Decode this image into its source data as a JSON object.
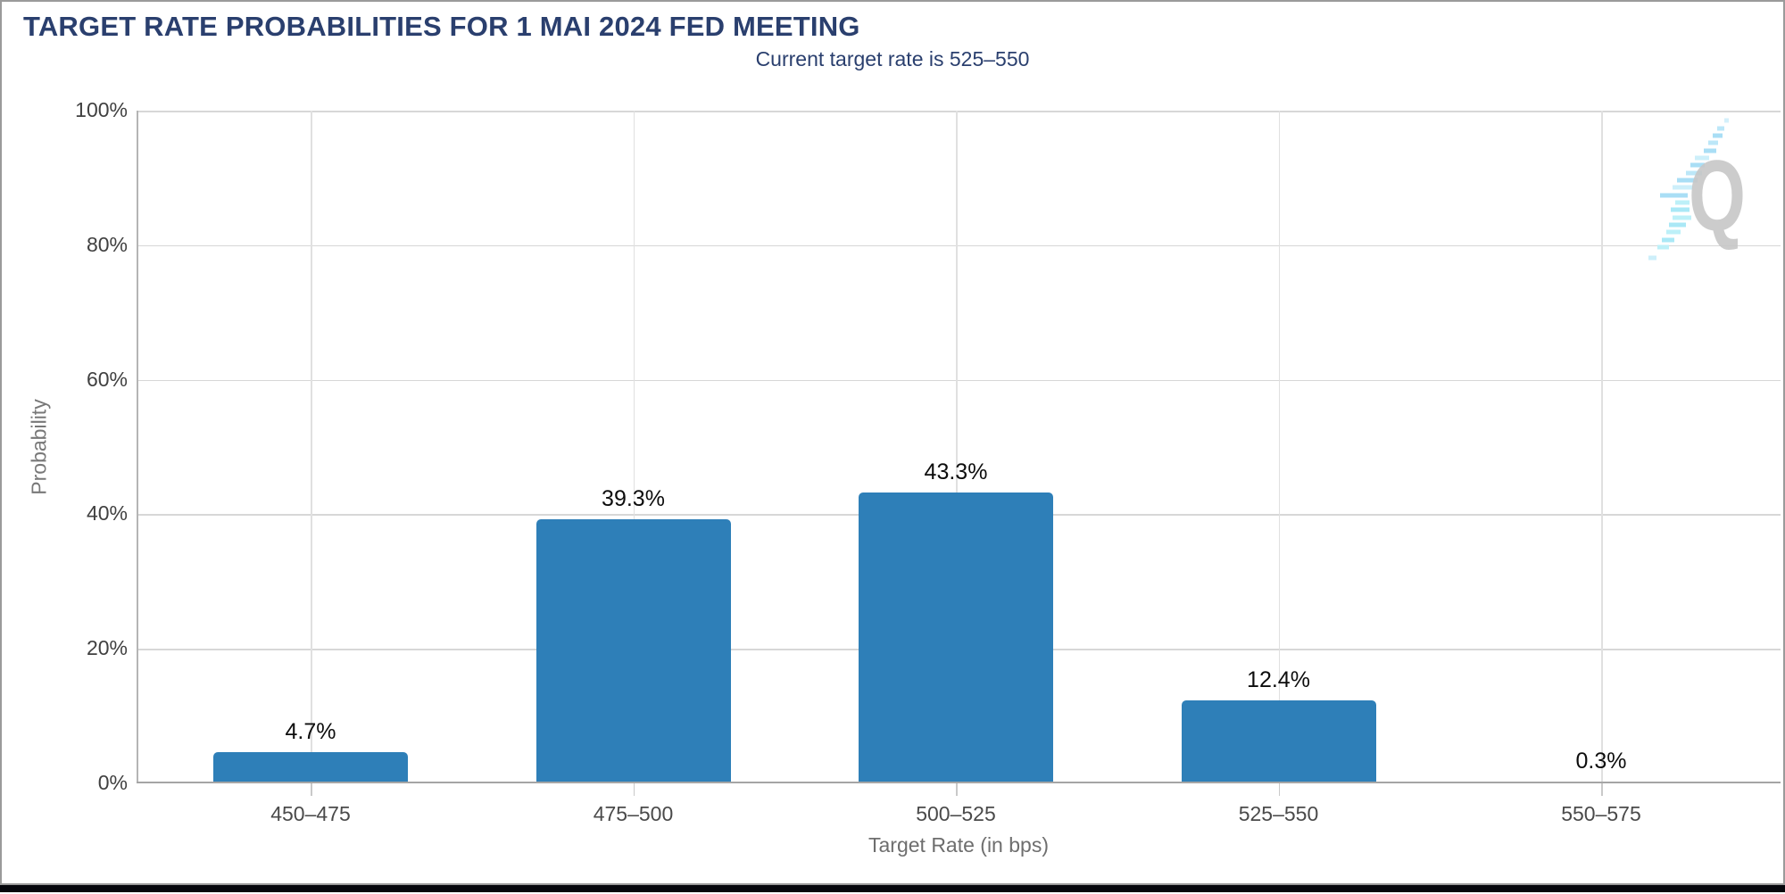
{
  "window": {
    "border_color": "#9a9a9a",
    "bottom_bar_color": "#05060c",
    "background": "#ffffff"
  },
  "header": {
    "title": "TARGET RATE PROBABILITIES FOR 1 MAI 2024 FED MEETING",
    "subtitle": "Current target rate is 525–550",
    "title_color": "#2a3f6e"
  },
  "watermark": {
    "letter": "Q",
    "letter_color": "#c7c7c7",
    "dash_colors": [
      "#a9def5",
      "#cdeffa"
    ]
  },
  "chart_data": {
    "type": "bar",
    "title": "TARGET RATE PROBABILITIES FOR 1 MAI 2024 FED MEETING",
    "subtitle": "Current target rate is 525–550",
    "categories": [
      "450–475",
      "475–500",
      "500–525",
      "525–550",
      "550–575"
    ],
    "values": [
      4.7,
      39.3,
      43.3,
      12.4,
      0.3
    ],
    "value_labels": [
      "4.7%",
      "39.3%",
      "43.3%",
      "12.4%",
      "0.3%"
    ],
    "xlabel": "Target Rate (in bps)",
    "ylabel": "Probability",
    "ylim": [
      0,
      100
    ],
    "yticks": [
      0,
      20,
      40,
      60,
      80,
      100
    ],
    "ytick_labels": [
      "0%",
      "20%",
      "40%",
      "60%",
      "80%",
      "100%"
    ],
    "grid": true,
    "legend": "none",
    "bar_color": "#2e7fb8",
    "value_label_color": "#0d0d0d"
  }
}
